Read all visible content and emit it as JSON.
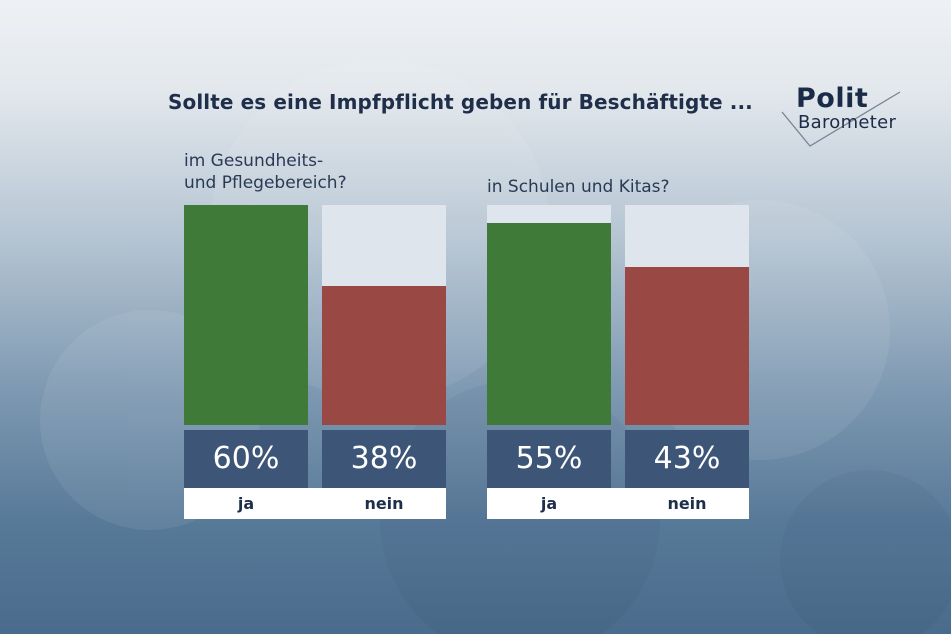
{
  "title": "Sollte es eine Impfpflicht geben für Beschäftigte ...",
  "logo": {
    "line1": "Polit",
    "line2": "Barometer"
  },
  "colors": {
    "ja": "#3f7a39",
    "nein": "#9a4844",
    "value_box": "#3d5577",
    "bar_background": "#dfe5ec"
  },
  "chart_data": [
    {
      "type": "bar",
      "title": "im Gesundheits-\nund Pflegebereich?",
      "categories": [
        "ja",
        "nein"
      ],
      "values": [
        60,
        38
      ],
      "value_labels": [
        "60%",
        "38%"
      ],
      "ylim": [
        0,
        60
      ]
    },
    {
      "type": "bar",
      "title": "in Schulen und Kitas?",
      "categories": [
        "ja",
        "nein"
      ],
      "values": [
        55,
        43
      ],
      "value_labels": [
        "55%",
        "43%"
      ],
      "ylim": [
        0,
        60
      ]
    }
  ]
}
